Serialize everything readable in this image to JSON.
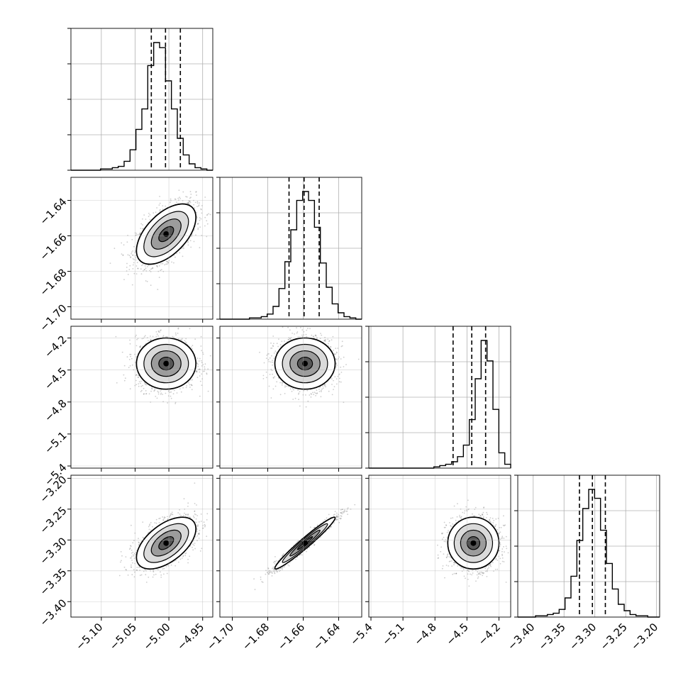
{
  "chart_data": {
    "type": "corner",
    "parameters": [
      {
        "ticks": [
          "−5.10",
          "−5.05",
          "−5.00",
          "−4.95"
        ],
        "tick_values": [
          -5.1,
          -5.05,
          -5.0,
          -4.95
        ],
        "range": [
          -5.145,
          -4.935
        ],
        "mean": -5.004,
        "sd": 0.022,
        "quantiles": [
          -5.026,
          -5.005,
          -4.983
        ]
      },
      {
        "ticks": [
          "−1.70",
          "−1.68",
          "−1.66",
          "−1.64"
        ],
        "tick_values": [
          -1.7,
          -1.68,
          -1.66,
          -1.64
        ],
        "range": [
          -1.707,
          -1.627
        ],
        "mean": -1.659,
        "sd": 0.0085,
        "quantiles": [
          -1.668,
          -1.6595,
          -1.651
        ]
      },
      {
        "ticks": [
          "−5.4",
          "−5.1",
          "−4.8",
          "−4.5",
          "−4.2"
        ],
        "tick_values": [
          -5.4,
          -5.1,
          -4.8,
          -4.5,
          -4.2
        ],
        "range": [
          -5.42,
          -4.09
        ],
        "mean": -4.44,
        "sd": 0.12,
        "quantiles": [
          -4.63,
          -4.455,
          -4.325
        ]
      },
      {
        "ticks": [
          "−3.40",
          "−3.35",
          "−3.30",
          "−3.25",
          "−3.20"
        ],
        "tick_values": [
          -3.4,
          -3.35,
          -3.3,
          -3.25,
          -3.2
        ],
        "range": [
          -3.425,
          -3.195
        ],
        "mean": -3.305,
        "sd": 0.021,
        "quantiles": [
          -3.325,
          -3.304,
          -3.283
        ]
      }
    ],
    "histograms": [
      [
        0,
        0,
        0,
        0,
        0,
        1,
        1,
        2,
        3,
        7,
        16,
        32,
        48,
        82,
        100,
        96,
        70,
        48,
        25,
        12,
        5,
        2,
        1,
        0
      ],
      [
        0,
        0,
        0,
        0,
        0,
        1,
        1,
        2,
        4,
        10,
        24,
        45,
        70,
        93,
        100,
        93,
        72,
        44,
        25,
        12,
        5,
        2,
        1,
        0
      ],
      [
        0,
        0,
        0,
        0,
        0,
        0,
        0,
        0,
        0,
        0,
        0,
        1,
        2,
        3,
        5,
        9,
        18,
        38,
        70,
        100,
        84,
        46,
        12,
        3
      ],
      [
        0,
        0,
        0,
        1,
        1,
        2,
        3,
        6,
        15,
        32,
        60,
        85,
        100,
        93,
        68,
        42,
        22,
        10,
        5,
        2,
        1,
        1,
        0,
        0
      ]
    ],
    "correlations": {
      "1-0": 0.55,
      "2-0": 0.0,
      "2-1": 0.0,
      "3-0": 0.55,
      "3-1": 0.97,
      "3-2": 0.0
    },
    "grid": true
  }
}
